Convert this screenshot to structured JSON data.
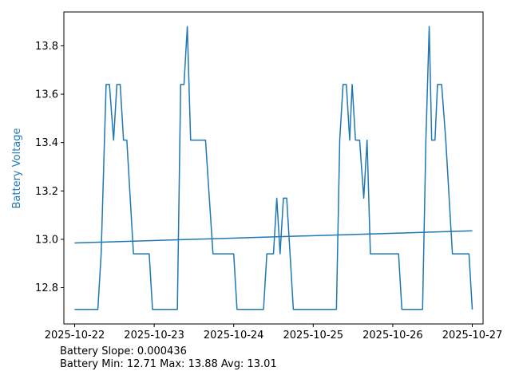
{
  "chart_data": {
    "type": "line",
    "ylabel": "Battery Voltage",
    "ylabel_color": "#1f77b4",
    "series_color": "#1f77b4",
    "grid": false,
    "x_axis_type": "date",
    "xlim": [
      "2025-10-21T20:45",
      "2025-10-27T03:15"
    ],
    "ylim": [
      12.65,
      13.94
    ],
    "x_ticks": [
      "2025-10-22",
      "2025-10-23",
      "2025-10-24",
      "2025-10-25",
      "2025-10-26",
      "2025-10-27"
    ],
    "y_ticks": [
      12.8,
      13.0,
      13.2,
      13.4,
      13.6,
      13.8
    ],
    "series": [
      {
        "points": [
          [
            "2025-10-22T00:00",
            12.71
          ],
          [
            "2025-10-22T07:00",
            12.71
          ],
          [
            "2025-10-22T08:00",
            12.94
          ],
          [
            "2025-10-22T09:00",
            13.41
          ],
          [
            "2025-10-22T09:30",
            13.64
          ],
          [
            "2025-10-22T10:30",
            13.64
          ],
          [
            "2025-10-22T11:45",
            13.41
          ],
          [
            "2025-10-22T12:45",
            13.64
          ],
          [
            "2025-10-22T13:45",
            13.64
          ],
          [
            "2025-10-22T14:45",
            13.41
          ],
          [
            "2025-10-22T15:45",
            13.41
          ],
          [
            "2025-10-22T17:45",
            12.94
          ],
          [
            "2025-10-22T22:30",
            12.94
          ],
          [
            "2025-10-22T23:30",
            12.71
          ],
          [
            "2025-10-23T07:00",
            12.71
          ],
          [
            "2025-10-23T08:00",
            13.64
          ],
          [
            "2025-10-23T09:00",
            13.64
          ],
          [
            "2025-10-23T10:00",
            13.88
          ],
          [
            "2025-10-23T11:00",
            13.41
          ],
          [
            "2025-10-23T15:30",
            13.41
          ],
          [
            "2025-10-23T17:45",
            12.94
          ],
          [
            "2025-10-24T00:00",
            12.94
          ],
          [
            "2025-10-24T01:00",
            12.71
          ],
          [
            "2025-10-24T09:00",
            12.71
          ],
          [
            "2025-10-24T10:00",
            12.94
          ],
          [
            "2025-10-24T12:00",
            12.94
          ],
          [
            "2025-10-24T13:00",
            13.17
          ],
          [
            "2025-10-24T14:00",
            12.94
          ],
          [
            "2025-10-24T15:00",
            13.17
          ],
          [
            "2025-10-24T16:00",
            13.17
          ],
          [
            "2025-10-24T17:00",
            12.94
          ],
          [
            "2025-10-24T18:00",
            12.71
          ],
          [
            "2025-10-25T07:00",
            12.71
          ],
          [
            "2025-10-25T08:00",
            13.41
          ],
          [
            "2025-10-25T09:00",
            13.64
          ],
          [
            "2025-10-25T10:00",
            13.64
          ],
          [
            "2025-10-25T11:00",
            13.41
          ],
          [
            "2025-10-25T11:45",
            13.64
          ],
          [
            "2025-10-25T12:45",
            13.41
          ],
          [
            "2025-10-25T14:00",
            13.41
          ],
          [
            "2025-10-25T15:15",
            13.17
          ],
          [
            "2025-10-25T16:15",
            13.41
          ],
          [
            "2025-10-25T17:15",
            12.94
          ],
          [
            "2025-10-26T01:45",
            12.94
          ],
          [
            "2025-10-26T02:45",
            12.71
          ],
          [
            "2025-10-26T09:00",
            12.71
          ],
          [
            "2025-10-26T10:00",
            13.41
          ],
          [
            "2025-10-26T11:00",
            13.88
          ],
          [
            "2025-10-26T11:45",
            13.41
          ],
          [
            "2025-10-26T12:45",
            13.41
          ],
          [
            "2025-10-26T13:30",
            13.64
          ],
          [
            "2025-10-26T14:45",
            13.64
          ],
          [
            "2025-10-26T16:00",
            13.41
          ],
          [
            "2025-10-26T18:00",
            12.94
          ],
          [
            "2025-10-26T23:00",
            12.94
          ],
          [
            "2025-10-27T00:00",
            12.71
          ]
        ]
      },
      {
        "type": "trendline",
        "points": [
          [
            "2025-10-22T00:00",
            12.985
          ],
          [
            "2025-10-27T00:00",
            13.035
          ]
        ]
      }
    ]
  },
  "stats": {
    "slope_line": "Battery Slope: 0.000436",
    "summary_line": "Battery Min: 12.71 Max: 13.88 Avg: 13.01"
  }
}
